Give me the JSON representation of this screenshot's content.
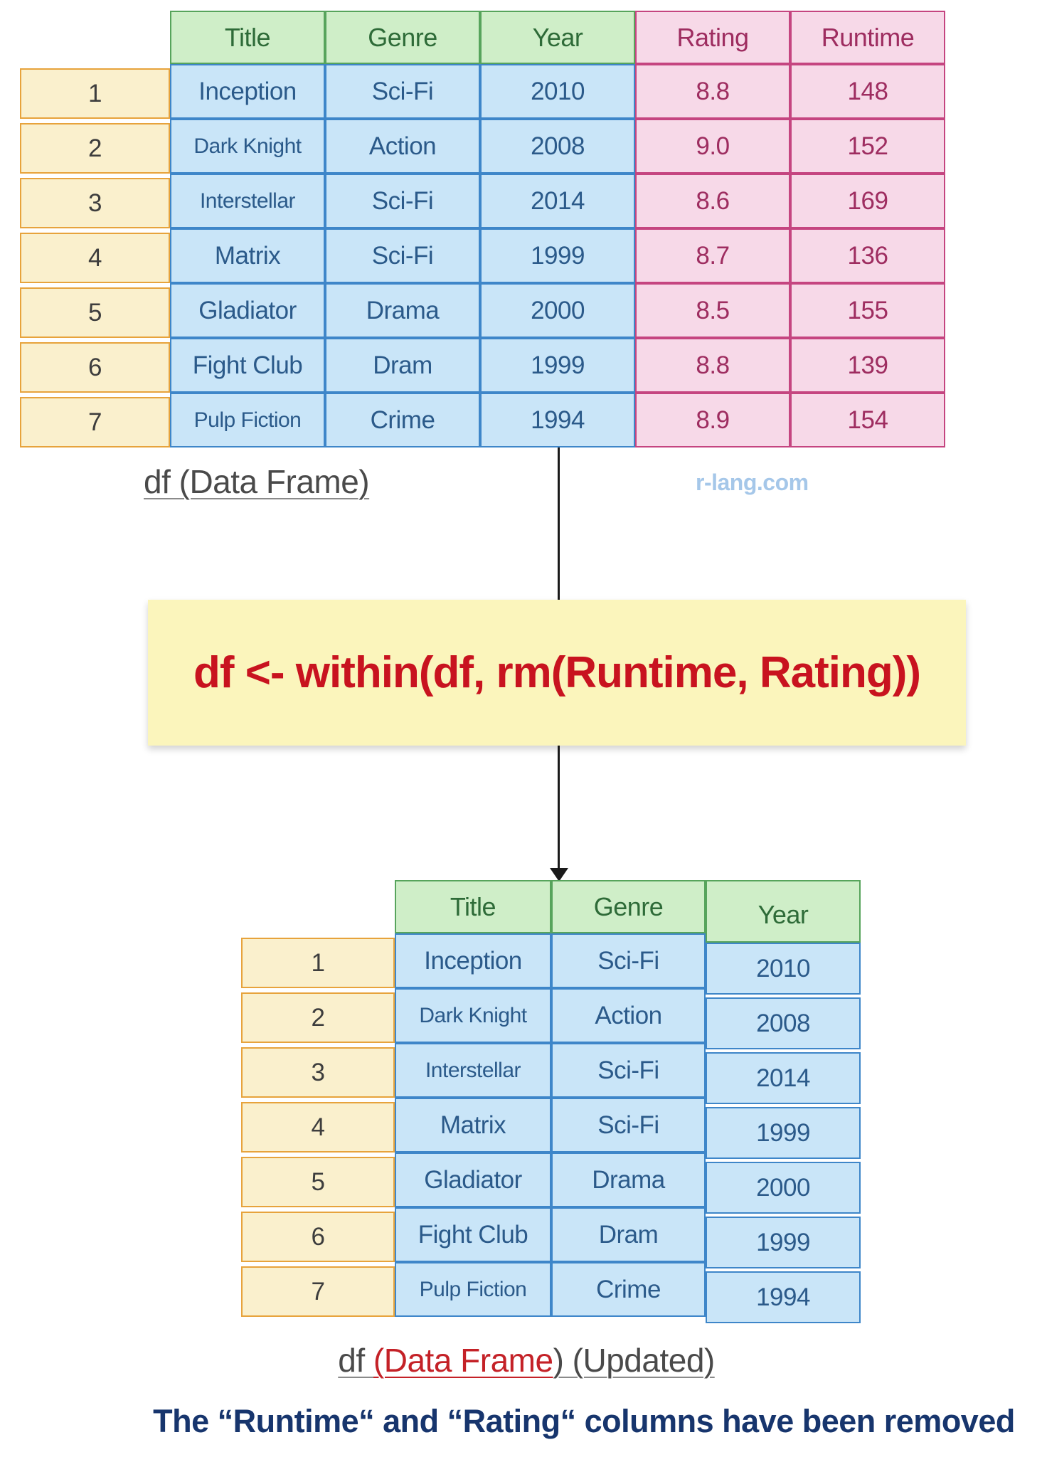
{
  "colors": {
    "header_green_bg": "#cfeec8",
    "header_green_border": "#57a45c",
    "header_green_text": "#2e6b38",
    "cell_blue_bg": "#c9e5f8",
    "cell_blue_border": "#3e86c9",
    "cell_blue_text": "#2b5a8a",
    "pink_bg": "#f7d9e8",
    "pink_border": "#c54580",
    "pink_text": "#9e2d60",
    "index_bg": "#faf0cd",
    "index_border": "#e7a33c",
    "code_box_bg": "#fbf5bc",
    "code_text": "#c8131f",
    "caption_text": "#17356d",
    "watermark_text": "#a5c7e9",
    "label_text": "#4a4a4a",
    "highlight_red": "#c42127",
    "arrow": "#1a1a1a"
  },
  "table1": {
    "columns": [
      {
        "label": "Title",
        "header_theme": "green",
        "cell_theme": "blue"
      },
      {
        "label": "Genre",
        "header_theme": "green",
        "cell_theme": "blue"
      },
      {
        "label": "Year",
        "header_theme": "green",
        "cell_theme": "blue"
      },
      {
        "label": "Rating",
        "header_theme": "pink",
        "cell_theme": "pink"
      },
      {
        "label": "Runtime",
        "header_theme": "pink",
        "cell_theme": "pink"
      }
    ],
    "rows": [
      {
        "index": "1",
        "cells": [
          "Inception",
          "Sci-Fi",
          "2010",
          "8.8",
          "148"
        ]
      },
      {
        "index": "2",
        "cells": [
          "Dark Knight",
          "Action",
          "2008",
          "9.0",
          "152"
        ]
      },
      {
        "index": "3",
        "cells": [
          "Interstellar",
          "Sci-Fi",
          "2014",
          "8.6",
          "169"
        ]
      },
      {
        "index": "4",
        "cells": [
          "Matrix",
          "Sci-Fi",
          "1999",
          "8.7",
          "136"
        ]
      },
      {
        "index": "5",
        "cells": [
          "Gladiator",
          "Drama",
          "2000",
          "8.5",
          "155"
        ]
      },
      {
        "index": "6",
        "cells": [
          "Fight Club",
          "Dram",
          "1999",
          "8.8",
          "139"
        ]
      },
      {
        "index": "7",
        "cells": [
          "Pulp Fiction",
          "Crime",
          "1994",
          "8.9",
          "154"
        ]
      }
    ]
  },
  "table2": {
    "columns": [
      {
        "label": "Title",
        "header_theme": "green",
        "cell_theme": "blue"
      },
      {
        "label": "Genre",
        "header_theme": "green",
        "cell_theme": "blue"
      },
      {
        "label": "Year",
        "header_theme": "green",
        "cell_theme": "blue",
        "offset_header": true,
        "offset_cells": true
      }
    ],
    "rows": [
      {
        "index": "1",
        "cells": [
          "Inception",
          "Sci-Fi",
          "2010"
        ]
      },
      {
        "index": "2",
        "cells": [
          "Dark Knight",
          "Action",
          "2008"
        ]
      },
      {
        "index": "3",
        "cells": [
          "Interstellar",
          "Sci-Fi",
          "2014"
        ]
      },
      {
        "index": "4",
        "cells": [
          "Matrix",
          "Sci-Fi",
          "1999"
        ]
      },
      {
        "index": "5",
        "cells": [
          "Gladiator",
          "Drama",
          "2000"
        ]
      },
      {
        "index": "6",
        "cells": [
          "Fight Club",
          "Dram",
          "1999"
        ]
      },
      {
        "index": "7",
        "cells": [
          "Pulp Fiction",
          "Crime",
          "1994"
        ]
      }
    ]
  },
  "labels": {
    "df_label": "df (Data Frame)",
    "updated_prefix": "df ",
    "updated_highlight": "(Data Frame",
    "updated_suffix": ") (Updated)"
  },
  "watermark": "r-lang.com",
  "code": "df <- within(df, rm(Runtime, Rating))",
  "caption": "The “Runtime“ and “Rating“ columns have been removed"
}
